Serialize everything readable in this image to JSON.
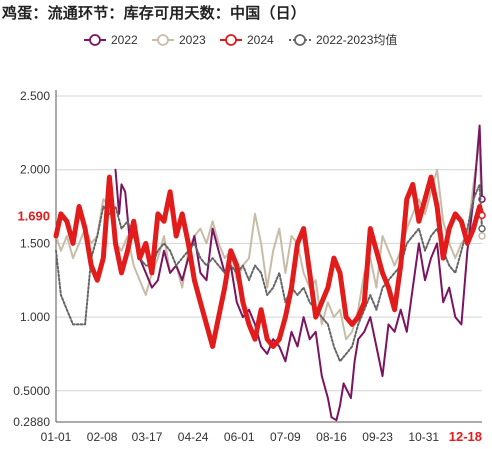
{
  "title": "鸡蛋：流通环节：库存可用天数：中国（日）",
  "chart_data": {
    "type": "line",
    "title": "鸡蛋：流通环节：库存可用天数：中国（日）",
    "y_ticks": [
      "2.500",
      "2.000",
      "1.500",
      "1.000",
      "0.5000",
      "0.2880"
    ],
    "y_tick_values": [
      2.5,
      2.0,
      1.5,
      1.0,
      0.5,
      0.288
    ],
    "ylim": [
      0.288,
      2.5
    ],
    "x_ticks": [
      "01-01",
      "02-08",
      "03-17",
      "04-24",
      "06-01",
      "07-09",
      "08-16",
      "09-23",
      "10-31",
      "12-18"
    ],
    "x_tick_days": [
      1,
      39,
      76,
      114,
      152,
      190,
      228,
      266,
      304,
      352
    ],
    "xlim_days": [
      1,
      352
    ],
    "highlight_value": "1.690",
    "highlight_x_label": "12-18",
    "legend_position": "top",
    "grid": "horizontal",
    "series": [
      {
        "name": "2022",
        "color": "#7a1560",
        "style": "solid",
        "x": [
          50,
          53,
          55,
          58,
          62,
          66,
          70,
          75,
          80,
          85,
          90,
          95,
          100,
          105,
          110,
          115,
          120,
          125,
          130,
          135,
          140,
          145,
          150,
          155,
          160,
          165,
          170,
          175,
          180,
          185,
          190,
          195,
          200,
          205,
          210,
          215,
          220,
          225,
          228,
          232,
          235,
          238,
          241,
          244,
          247,
          250,
          255,
          260,
          265,
          270,
          275,
          280,
          285,
          290,
          295,
          300,
          305,
          310,
          315,
          320,
          325,
          330,
          335,
          340,
          345,
          350,
          352
        ],
        "values": [
          2.0,
          1.7,
          1.9,
          1.85,
          1.5,
          1.6,
          1.4,
          1.3,
          1.2,
          1.25,
          1.45,
          1.3,
          1.35,
          1.25,
          1.4,
          1.55,
          1.3,
          1.25,
          1.6,
          1.45,
          1.3,
          1.35,
          1.1,
          1.0,
          1.05,
          0.95,
          0.8,
          0.75,
          0.85,
          0.8,
          0.7,
          0.9,
          0.8,
          1.0,
          0.85,
          0.9,
          0.6,
          0.45,
          0.32,
          0.3,
          0.4,
          0.55,
          0.5,
          0.45,
          0.7,
          0.85,
          0.9,
          1.0,
          0.8,
          0.6,
          0.95,
          0.9,
          1.05,
          0.9,
          1.2,
          1.5,
          1.25,
          1.4,
          1.5,
          1.1,
          1.2,
          1.0,
          0.95,
          1.45,
          1.8,
          2.3,
          1.8
        ]
      },
      {
        "name": "2023",
        "color": "#c8bca8",
        "style": "solid",
        "x": [
          1,
          5,
          10,
          15,
          20,
          25,
          30,
          35,
          40,
          45,
          50,
          55,
          60,
          65,
          70,
          75,
          80,
          85,
          90,
          95,
          100,
          105,
          110,
          115,
          120,
          125,
          130,
          135,
          140,
          145,
          150,
          155,
          160,
          165,
          170,
          175,
          180,
          185,
          190,
          195,
          200,
          205,
          210,
          215,
          220,
          225,
          230,
          235,
          240,
          245,
          250,
          255,
          260,
          265,
          270,
          275,
          280,
          285,
          290,
          295,
          300,
          305,
          310,
          315,
          320,
          325,
          330,
          335,
          340,
          345,
          350,
          352
        ],
        "values": [
          1.55,
          1.45,
          1.55,
          1.4,
          1.5,
          1.6,
          1.5,
          1.55,
          1.8,
          1.75,
          1.5,
          1.45,
          1.55,
          1.35,
          1.25,
          1.15,
          1.3,
          1.4,
          1.55,
          1.3,
          1.35,
          1.2,
          1.45,
          1.55,
          1.6,
          1.5,
          1.65,
          1.5,
          1.4,
          1.45,
          1.25,
          1.35,
          1.4,
          1.7,
          1.5,
          1.2,
          1.45,
          1.6,
          1.3,
          1.55,
          1.5,
          1.3,
          1.2,
          1.25,
          0.95,
          1.1,
          1.0,
          1.05,
          0.85,
          0.9,
          1.05,
          1.3,
          1.4,
          1.2,
          1.55,
          1.45,
          1.35,
          1.45,
          1.6,
          1.7,
          1.8,
          1.7,
          1.85,
          2.0,
          1.65,
          1.5,
          1.4,
          1.5,
          1.55,
          1.9,
          2.2,
          1.55
        ]
      },
      {
        "name": "2024",
        "color": "#e21b1b",
        "style": "solid",
        "x": [
          1,
          5,
          10,
          15,
          20,
          25,
          30,
          35,
          40,
          45,
          50,
          55,
          60,
          65,
          70,
          75,
          80,
          85,
          90,
          95,
          100,
          105,
          110,
          115,
          120,
          125,
          130,
          135,
          140,
          145,
          150,
          155,
          160,
          165,
          170,
          175,
          180,
          185,
          190,
          195,
          200,
          205,
          210,
          215,
          220,
          225,
          230,
          235,
          240,
          245,
          250,
          255,
          260,
          265,
          270,
          275,
          280,
          285,
          290,
          295,
          300,
          305,
          310,
          315,
          320,
          325,
          330,
          335,
          340,
          345,
          350,
          352
        ],
        "values": [
          1.55,
          1.7,
          1.65,
          1.5,
          1.75,
          1.6,
          1.35,
          1.25,
          1.4,
          1.95,
          1.5,
          1.3,
          1.45,
          1.65,
          1.4,
          1.5,
          1.3,
          1.7,
          1.65,
          1.85,
          1.55,
          1.7,
          1.5,
          1.25,
          1.1,
          0.95,
          0.8,
          1.0,
          1.2,
          1.45,
          1.35,
          1.1,
          0.95,
          0.85,
          1.05,
          0.85,
          0.8,
          0.85,
          1.0,
          1.2,
          1.5,
          1.6,
          1.3,
          1.0,
          1.1,
          1.2,
          1.4,
          1.3,
          1.0,
          0.95,
          1.0,
          1.1,
          1.6,
          1.45,
          1.3,
          1.2,
          1.05,
          1.35,
          1.8,
          1.9,
          1.65,
          1.8,
          1.95,
          1.75,
          1.4,
          1.6,
          1.7,
          1.65,
          1.5,
          1.6,
          1.75,
          1.69
        ]
      },
      {
        "name": "2022-2023均值",
        "color": "#666666",
        "style": "dotted",
        "x": [
          1,
          5,
          10,
          15,
          20,
          25,
          30,
          35,
          40,
          45,
          50,
          55,
          60,
          65,
          70,
          75,
          80,
          85,
          90,
          95,
          100,
          105,
          110,
          115,
          120,
          125,
          130,
          135,
          140,
          145,
          150,
          155,
          160,
          165,
          170,
          175,
          180,
          185,
          190,
          195,
          200,
          205,
          210,
          215,
          220,
          225,
          230,
          235,
          240,
          245,
          250,
          255,
          260,
          265,
          270,
          275,
          280,
          285,
          290,
          295,
          300,
          305,
          310,
          315,
          320,
          325,
          330,
          335,
          340,
          345,
          350,
          352
        ],
        "values": [
          1.45,
          1.15,
          1.05,
          0.95,
          0.95,
          0.95,
          1.4,
          1.55,
          1.75,
          1.7,
          1.75,
          1.6,
          1.65,
          1.55,
          1.4,
          1.35,
          1.35,
          1.45,
          1.5,
          1.45,
          1.35,
          1.4,
          1.45,
          1.5,
          1.4,
          1.35,
          1.4,
          1.35,
          1.3,
          1.35,
          1.3,
          1.35,
          1.25,
          1.35,
          1.3,
          1.15,
          1.2,
          1.3,
          1.1,
          1.2,
          1.15,
          1.2,
          1.1,
          1.05,
          1.0,
          0.95,
          0.8,
          0.7,
          0.75,
          0.8,
          0.95,
          1.05,
          1.15,
          1.05,
          1.2,
          1.25,
          1.3,
          1.35,
          1.5,
          1.55,
          1.6,
          1.45,
          1.55,
          1.6,
          1.45,
          1.35,
          1.3,
          1.45,
          1.6,
          1.8,
          1.9,
          1.6
        ]
      }
    ]
  }
}
